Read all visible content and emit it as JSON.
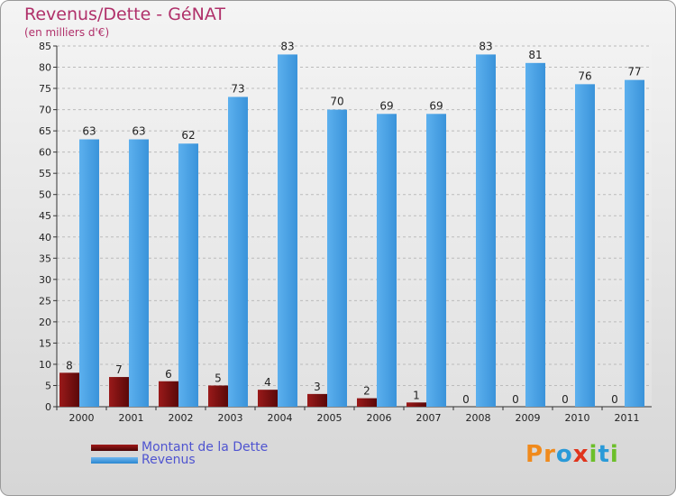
{
  "title": "Revenus/Dette - GéNAT",
  "subtitle": "(en milliers d'€)",
  "logo_text": "Proxiti",
  "chart_data": {
    "type": "bar",
    "categories": [
      "2000",
      "2001",
      "2002",
      "2003",
      "2004",
      "2005",
      "2006",
      "2007",
      "2008",
      "2009",
      "2010",
      "2011"
    ],
    "series": [
      {
        "name": "Montant de la Dette",
        "values": [
          8,
          7,
          6,
          5,
          4,
          3,
          2,
          1,
          0,
          0,
          0,
          0
        ],
        "color": "#7a1010"
      },
      {
        "name": "Revenus",
        "values": [
          63,
          63,
          62,
          73,
          83,
          70,
          69,
          69,
          83,
          81,
          76,
          77
        ],
        "color": "#4aa3e6"
      }
    ],
    "ylim": [
      0,
      85
    ],
    "yticks": [
      0,
      5,
      10,
      15,
      20,
      25,
      30,
      35,
      40,
      45,
      50,
      55,
      60,
      65,
      70,
      75,
      80,
      85
    ],
    "grid": true,
    "legend": "bottom-left"
  },
  "colors": {
    "title": "#b0306a",
    "legend_text": "#4f54d0",
    "grid": "#bbbbbb",
    "axis": "#333333"
  }
}
